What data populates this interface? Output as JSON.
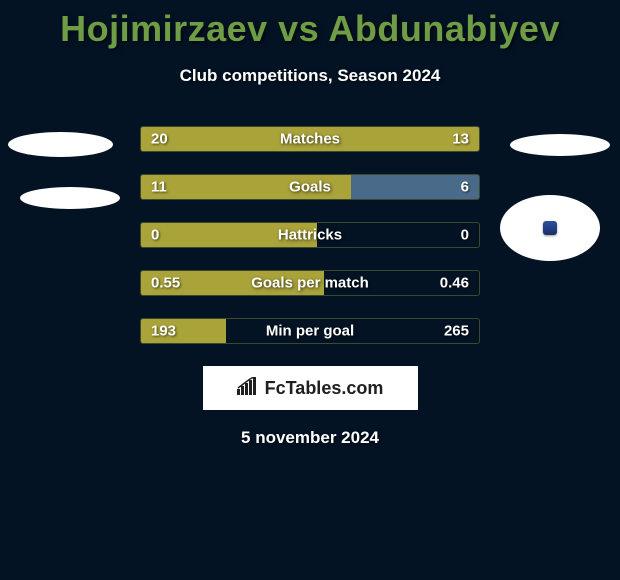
{
  "title": {
    "text": "Hojimirzaev vs Abdunabiyev",
    "color": "#6f9d45"
  },
  "subtitle": "Club competitions, Season 2024",
  "date": "5 november 2024",
  "brand": "FcTables.com",
  "colors": {
    "background": "#041324",
    "left_fill": "#a9a33a",
    "right_fill": "#4a6a8a",
    "bar_border": "#3b4a2e"
  },
  "bars": [
    {
      "metric": "Matches",
      "left": "20",
      "right": "13",
      "left_pct": 100,
      "right_pct": 0
    },
    {
      "metric": "Goals",
      "left": "11",
      "right": "6",
      "left_pct": 62,
      "right_pct": 38
    },
    {
      "metric": "Hattricks",
      "left": "0",
      "right": "0",
      "left_pct": 52,
      "right_pct": 0
    },
    {
      "metric": "Goals per match",
      "left": "0.55",
      "right": "0.46",
      "left_pct": 54,
      "right_pct": 0
    },
    {
      "metric": "Min per goal",
      "left": "193",
      "right": "265",
      "left_pct": 25,
      "right_pct": 0
    }
  ]
}
